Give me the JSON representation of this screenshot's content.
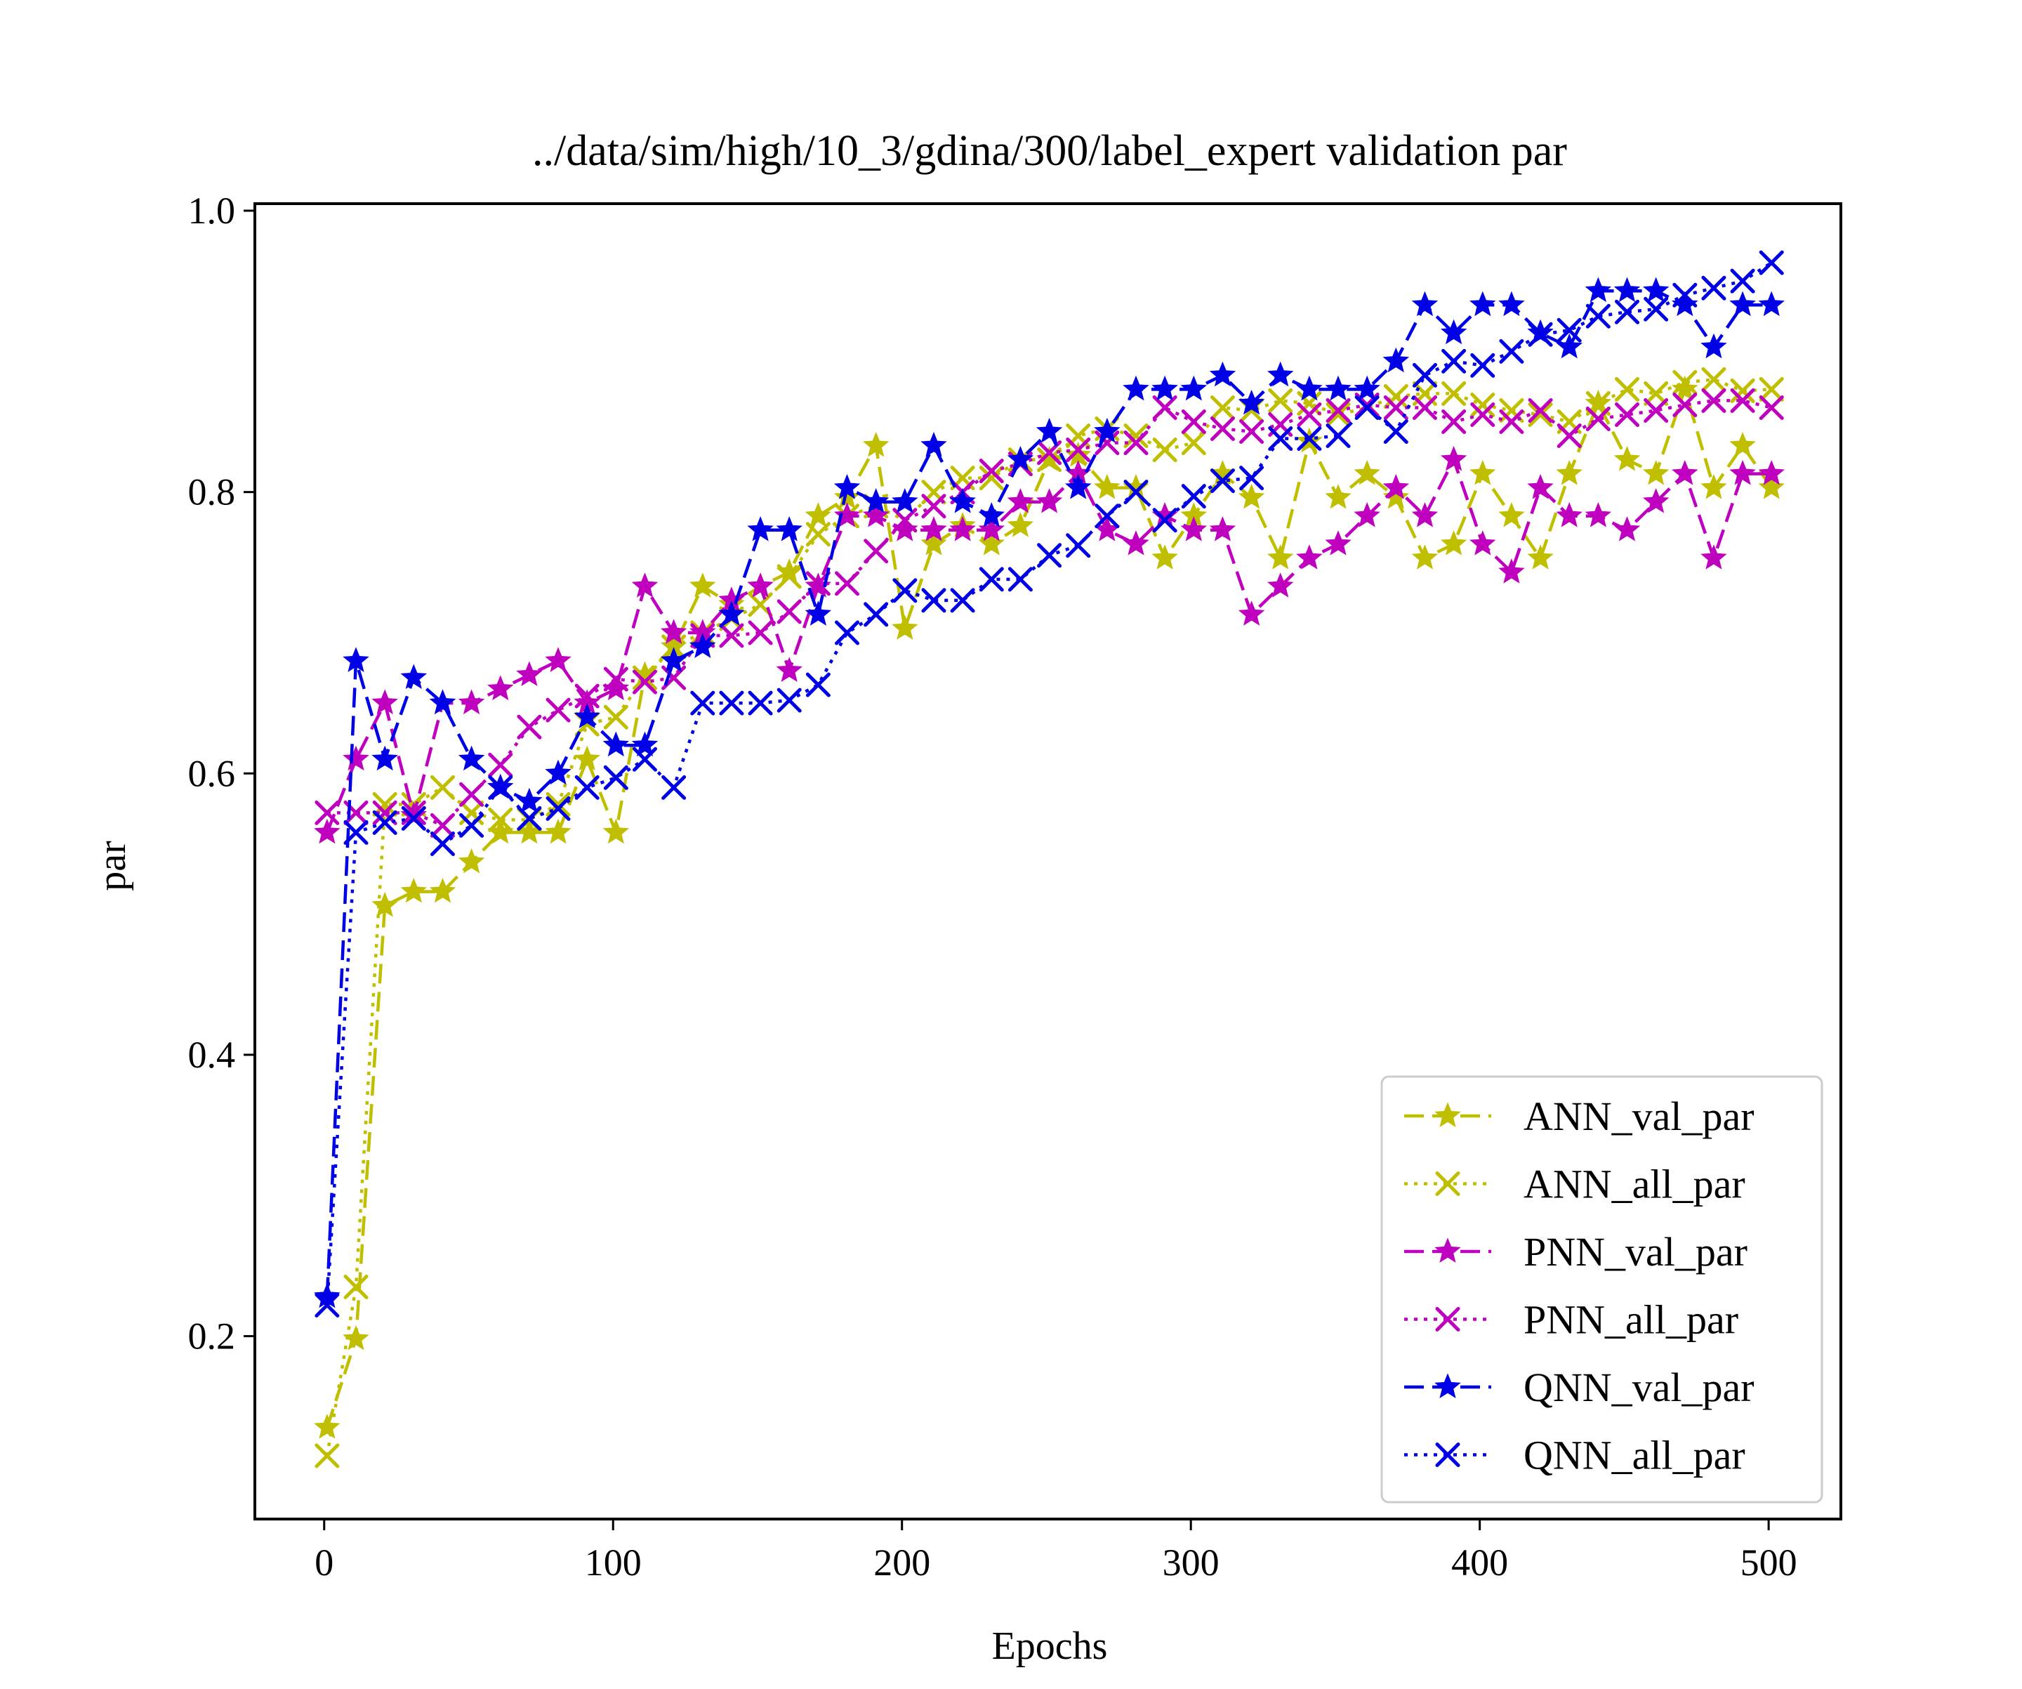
{
  "chart_data": {
    "type": "line",
    "title": "../data/sim/high/10_3/gdina/300/label_expert validation par",
    "xlabel": "Epochs",
    "ylabel": "par",
    "xlim": [
      -24,
      525
    ],
    "ylim": [
      0.07,
      1.005
    ],
    "xticks": [
      "0",
      "100",
      "200",
      "300",
      "400",
      "500"
    ],
    "yticks": [
      "0.2",
      "0.4",
      "0.6",
      "0.8",
      "1.0"
    ],
    "grid": false,
    "legend_position": "lower-right",
    "x": [
      1,
      11,
      21,
      31,
      41,
      51,
      61,
      71,
      81,
      91,
      101,
      111,
      121,
      131,
      141,
      151,
      161,
      171,
      181,
      191,
      201,
      211,
      221,
      231,
      241,
      251,
      261,
      271,
      281,
      291,
      301,
      311,
      321,
      331,
      341,
      351,
      361,
      371,
      381,
      391,
      401,
      411,
      421,
      431,
      441,
      451,
      461,
      471,
      481,
      491,
      501
    ],
    "series": [
      {
        "name": "ANN_val_par",
        "color": "#bfbf00",
        "marker": "star",
        "dash": "dashed",
        "values": [
          0.135,
          0.198,
          0.506,
          0.516,
          0.516,
          0.537,
          0.558,
          0.558,
          0.558,
          0.61,
          0.558,
          0.67,
          0.69,
          0.733,
          0.72,
          0.733,
          0.743,
          0.783,
          0.796,
          0.833,
          0.703,
          0.763,
          0.776,
          0.763,
          0.776,
          0.823,
          0.826,
          0.803,
          0.803,
          0.753,
          0.783,
          0.813,
          0.796,
          0.753,
          0.836,
          0.796,
          0.813,
          0.796,
          0.753,
          0.763,
          0.813,
          0.783,
          0.753,
          0.813,
          0.863,
          0.823,
          0.813,
          0.873,
          0.803,
          0.833,
          0.803
        ]
      },
      {
        "name": "ANN_all_par",
        "color": "#bfbf00",
        "marker": "x",
        "dash": "dotted",
        "values": [
          0.115,
          0.235,
          0.578,
          0.578,
          0.59,
          0.572,
          0.567,
          0.567,
          0.578,
          0.635,
          0.64,
          0.668,
          0.69,
          0.7,
          0.71,
          0.72,
          0.74,
          0.77,
          0.783,
          0.79,
          0.78,
          0.8,
          0.81,
          0.81,
          0.823,
          0.823,
          0.84,
          0.845,
          0.84,
          0.83,
          0.835,
          0.86,
          0.858,
          0.865,
          0.863,
          0.855,
          0.86,
          0.868,
          0.87,
          0.87,
          0.862,
          0.858,
          0.855,
          0.85,
          0.863,
          0.873,
          0.87,
          0.878,
          0.88,
          0.872,
          0.873
        ]
      },
      {
        "name": "PNN_val_par",
        "color": "#bf00bf",
        "marker": "star",
        "dash": "dashed",
        "values": [
          0.558,
          0.61,
          0.65,
          0.57,
          0.65,
          0.65,
          0.66,
          0.67,
          0.68,
          0.65,
          0.66,
          0.733,
          0.7,
          0.7,
          0.723,
          0.733,
          0.673,
          0.733,
          0.783,
          0.783,
          0.773,
          0.773,
          0.773,
          0.773,
          0.793,
          0.793,
          0.813,
          0.773,
          0.763,
          0.783,
          0.773,
          0.773,
          0.713,
          0.733,
          0.753,
          0.763,
          0.783,
          0.803,
          0.783,
          0.823,
          0.763,
          0.743,
          0.803,
          0.783,
          0.783,
          0.773,
          0.793,
          0.813,
          0.753,
          0.813,
          0.813
        ]
      },
      {
        "name": "PNN_all_par",
        "color": "#bf00bf",
        "marker": "x",
        "dash": "dotted",
        "values": [
          0.572,
          0.572,
          0.572,
          0.572,
          0.563,
          0.585,
          0.606,
          0.633,
          0.645,
          0.655,
          0.667,
          0.665,
          0.668,
          0.698,
          0.698,
          0.7,
          0.715,
          0.735,
          0.735,
          0.758,
          0.78,
          0.79,
          0.8,
          0.815,
          0.82,
          0.828,
          0.83,
          0.835,
          0.835,
          0.86,
          0.85,
          0.845,
          0.843,
          0.848,
          0.855,
          0.858,
          0.862,
          0.86,
          0.86,
          0.85,
          0.855,
          0.85,
          0.858,
          0.84,
          0.852,
          0.855,
          0.858,
          0.862,
          0.865,
          0.865,
          0.86
        ]
      },
      {
        "name": "QNN_val_par",
        "color": "#0000e6",
        "marker": "star",
        "dash": "dashed",
        "values": [
          0.228,
          0.68,
          0.61,
          0.668,
          0.65,
          0.61,
          0.59,
          0.58,
          0.6,
          0.64,
          0.62,
          0.62,
          0.68,
          0.69,
          0.713,
          0.773,
          0.773,
          0.713,
          0.803,
          0.793,
          0.793,
          0.833,
          0.793,
          0.783,
          0.823,
          0.843,
          0.803,
          0.843,
          0.873,
          0.873,
          0.873,
          0.883,
          0.863,
          0.883,
          0.873,
          0.873,
          0.873,
          0.893,
          0.933,
          0.913,
          0.933,
          0.933,
          0.913,
          0.903,
          0.943,
          0.943,
          0.943,
          0.933,
          0.903,
          0.933,
          0.933
        ]
      },
      {
        "name": "QNN_all_par",
        "color": "#0000e6",
        "marker": "x",
        "dash": "dotted",
        "values": [
          0.222,
          0.558,
          0.565,
          0.568,
          0.55,
          0.563,
          0.59,
          0.568,
          0.575,
          0.59,
          0.597,
          0.61,
          0.59,
          0.65,
          0.65,
          0.65,
          0.652,
          0.663,
          0.7,
          0.713,
          0.73,
          0.723,
          0.723,
          0.738,
          0.738,
          0.755,
          0.762,
          0.783,
          0.8,
          0.78,
          0.797,
          0.808,
          0.81,
          0.838,
          0.838,
          0.84,
          0.86,
          0.843,
          0.883,
          0.893,
          0.89,
          0.9,
          0.912,
          0.915,
          0.925,
          0.928,
          0.93,
          0.94,
          0.945,
          0.95,
          0.963
        ]
      }
    ]
  }
}
